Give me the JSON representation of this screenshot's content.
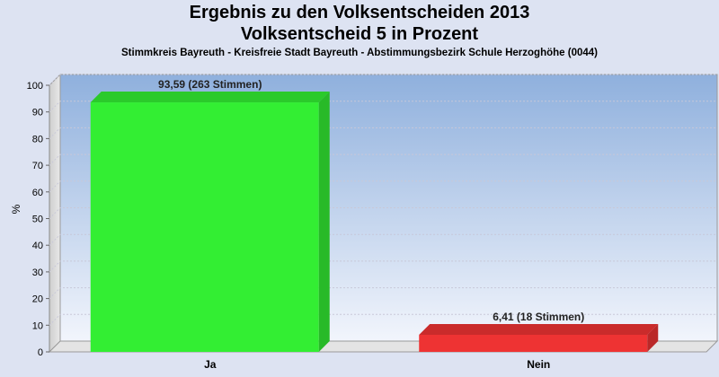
{
  "chart_data": {
    "type": "bar",
    "title": "Ergebnis zu den Volksentscheiden 2013",
    "subtitle": "Volksentscheid 5 in Prozent",
    "caption": "Stimmkreis Bayreuth - Kreisfreie Stadt Bayreuth - Abstimmungsbezirk Schule Herzoghöhe (0044)",
    "ylabel": "%",
    "ylim": [
      0,
      100
    ],
    "yticks": [
      0,
      10,
      20,
      30,
      40,
      50,
      60,
      70,
      80,
      90,
      100
    ],
    "categories": [
      "Ja",
      "Nein"
    ],
    "values": [
      93.59,
      6.41
    ],
    "data_labels": [
      "93,59 (263 Stimmen)",
      "6,41 (18 Stimmen)"
    ],
    "colors": [
      "#33ee33",
      "#ee3333"
    ],
    "grid": true,
    "legend": "none"
  }
}
